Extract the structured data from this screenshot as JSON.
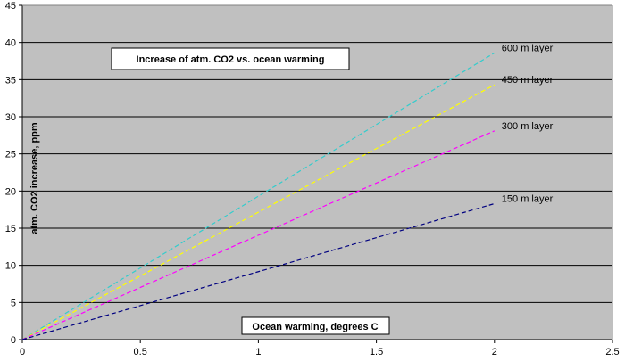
{
  "chart_data": {
    "type": "line",
    "title": "Increase of atm. CO2 vs. ocean warming",
    "xlabel": "Ocean warming, degrees C",
    "ylabel": "atm. CO2 increase, ppm",
    "xlim": [
      0,
      2.5
    ],
    "ylim": [
      0,
      45
    ],
    "xticks": [
      0,
      0.5,
      1,
      1.5,
      2,
      2.5
    ],
    "xtick_labels": [
      "0",
      "0.5",
      "1",
      "1.5",
      "2",
      "2.5"
    ],
    "yticks": [
      0,
      5,
      10,
      15,
      20,
      25,
      30,
      35,
      40,
      45
    ],
    "ytick_labels": [
      "0",
      "5",
      "10",
      "15",
      "20",
      "25",
      "30",
      "35",
      "40",
      "45"
    ],
    "grid": "horizontal",
    "plot_background": "#C0C0C0",
    "series": [
      {
        "name": "600 m layer",
        "color": "#33CCCC",
        "x": [
          0,
          2
        ],
        "y": [
          0,
          38.6
        ]
      },
      {
        "name": "450 m layer",
        "color": "#FFFF00",
        "x": [
          0,
          2
        ],
        "y": [
          0,
          34.3
        ]
      },
      {
        "name": "300 m layer",
        "color": "#FF00FF",
        "x": [
          0,
          2
        ],
        "y": [
          0,
          28.1
        ]
      },
      {
        "name": "150 m layer",
        "color": "#000080",
        "x": [
          0,
          2
        ],
        "y": [
          0,
          18.3
        ]
      }
    ],
    "legend": "labels at line ends"
  }
}
